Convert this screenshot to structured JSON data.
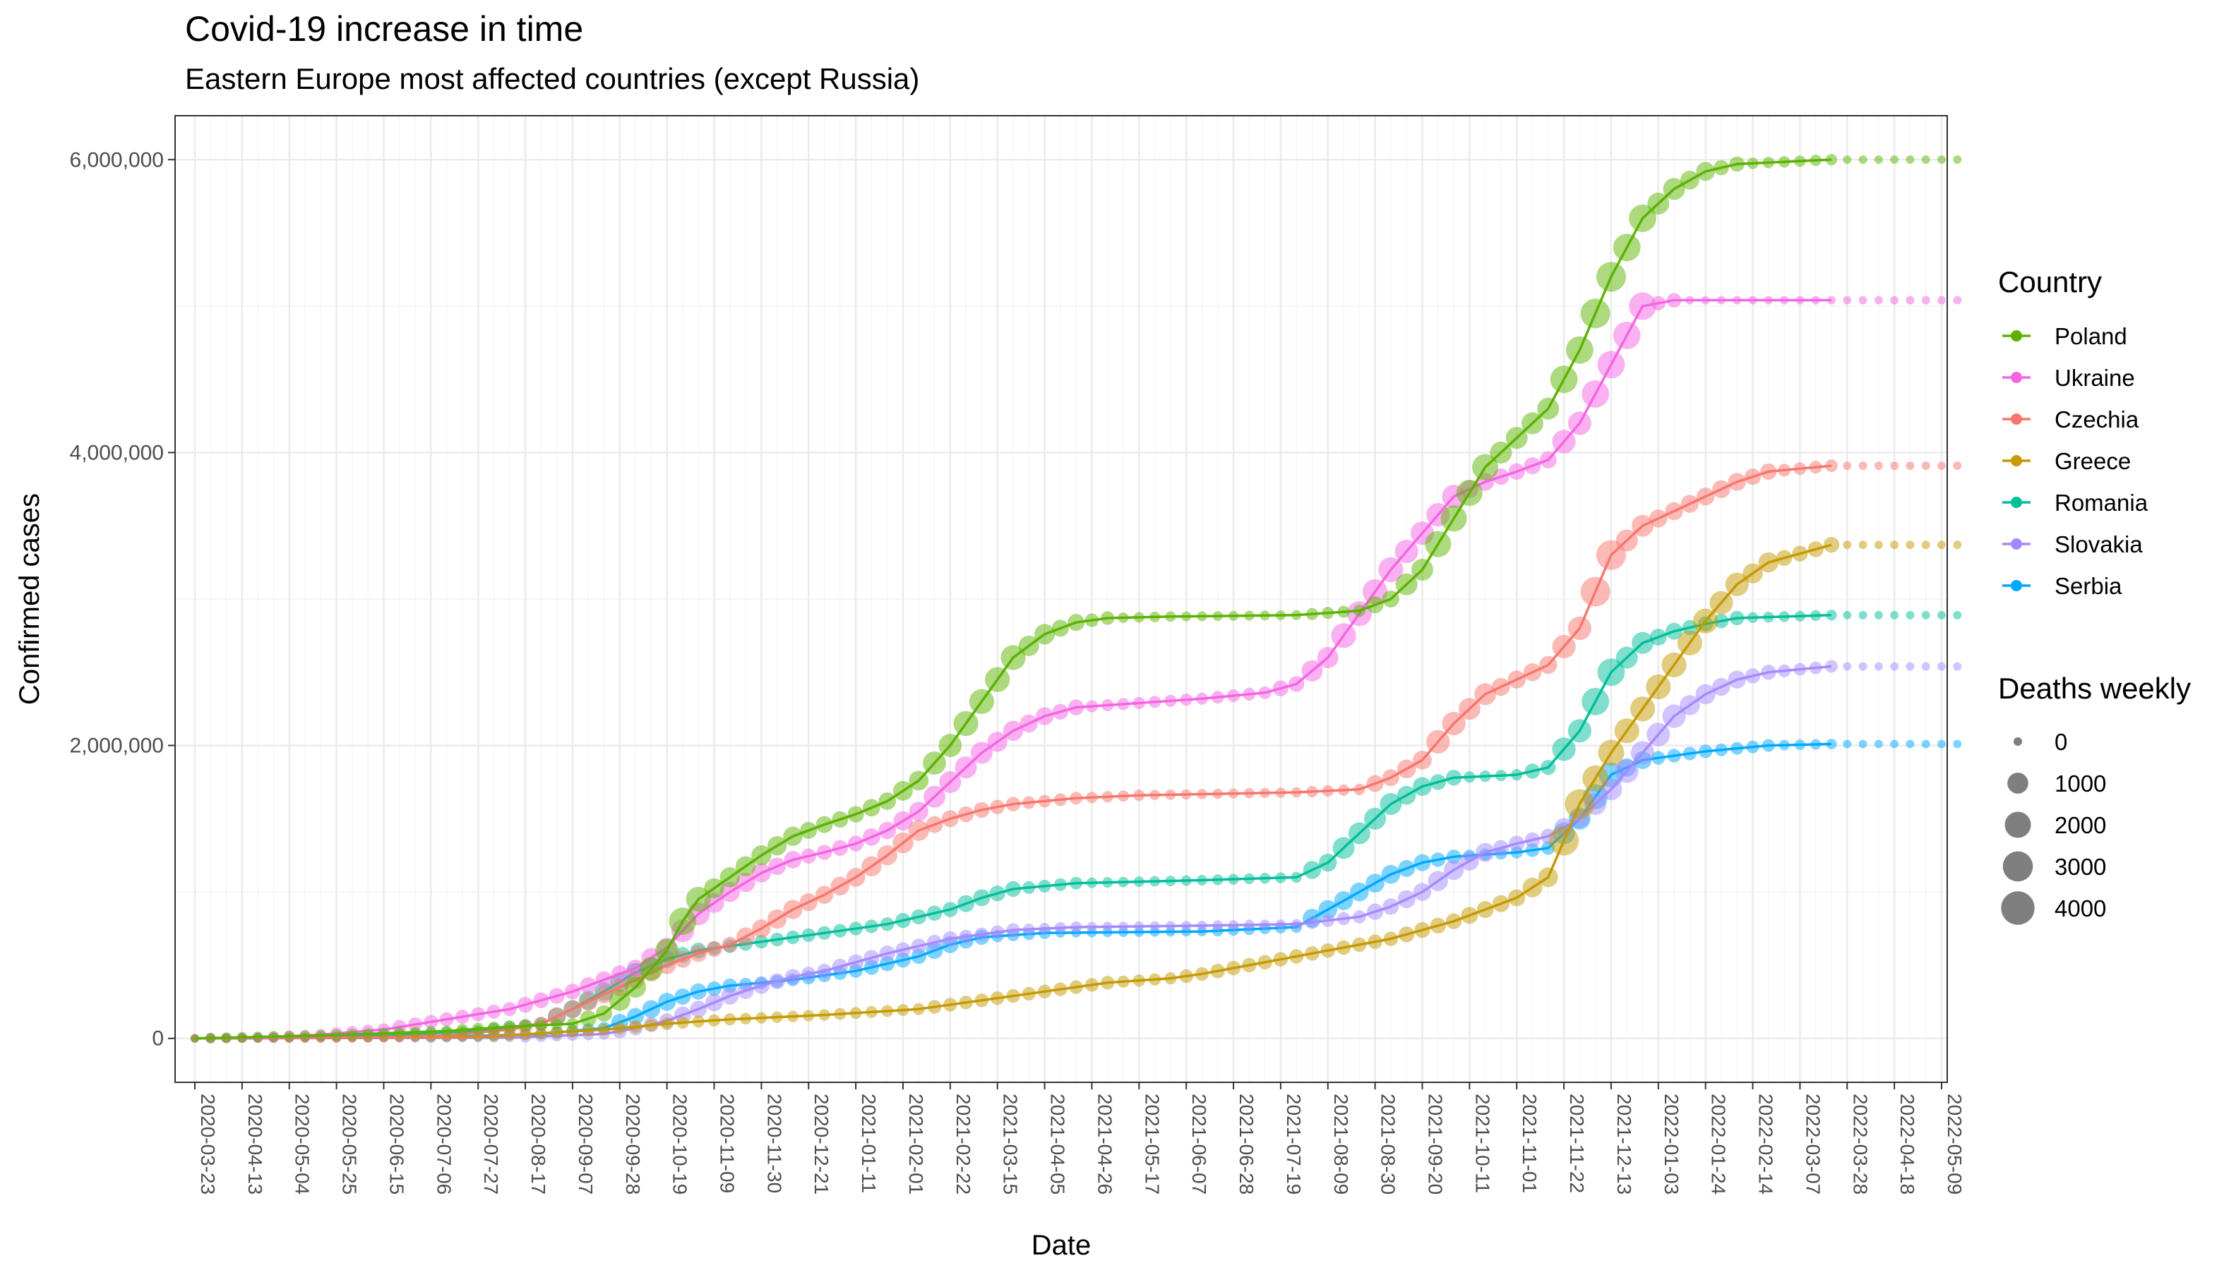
{
  "chart_data": {
    "type": "line",
    "title": "Covid-19 increase in time",
    "subtitle": "Eastern Europe most affected countries (except Russia)",
    "xlabel": "Date",
    "ylabel": "Confirmed cases",
    "x_ticks": [
      "2020-03-23",
      "2020-04-13",
      "2020-05-04",
      "2020-05-25",
      "2020-06-15",
      "2020-07-06",
      "2020-07-27",
      "2020-08-17",
      "2020-09-07",
      "2020-09-28",
      "2020-10-19",
      "2020-11-09",
      "2020-11-30",
      "2020-12-21",
      "2021-01-11",
      "2021-02-01",
      "2021-02-22",
      "2021-03-15",
      "2021-04-05",
      "2021-04-26",
      "2021-05-17",
      "2021-06-07",
      "2021-06-28",
      "2021-07-19",
      "2021-08-09",
      "2021-08-30",
      "2021-09-20",
      "2021-10-11",
      "2021-11-01",
      "2021-11-22",
      "2021-12-13",
      "2022-01-03",
      "2022-01-24",
      "2022-02-14",
      "2022-03-07",
      "2022-03-28",
      "2022-04-18",
      "2022-05-09"
    ],
    "y_ticks": [
      0,
      2000000,
      4000000,
      6000000
    ],
    "y_tick_labels": [
      "0",
      "2,000,000",
      "4,000,000",
      "6,000,000"
    ],
    "ylim": [
      -300000,
      6300000
    ],
    "grid": true,
    "legend_position": "right",
    "legend_title": "Country",
    "size_legend": {
      "title": "Deaths weekly",
      "values": [
        0,
        1000,
        2000,
        3000,
        4000
      ],
      "labels": [
        "0",
        "1000",
        "2000",
        "3000",
        "4000"
      ]
    },
    "series": [
      {
        "name": "Poland",
        "color": "#5BB300",
        "points": [
          [
            0,
            0
          ],
          [
            4,
            10000
          ],
          [
            8,
            20000
          ],
          [
            12,
            35000
          ],
          [
            16,
            50000
          ],
          [
            20,
            80000
          ],
          [
            24,
            100000
          ],
          [
            26,
            170000
          ],
          [
            28,
            350000
          ],
          [
            30,
            600000
          ],
          [
            31,
            800000
          ],
          [
            32,
            950000
          ],
          [
            34,
            1100000
          ],
          [
            36,
            1250000
          ],
          [
            38,
            1380000
          ],
          [
            40,
            1460000
          ],
          [
            42,
            1530000
          ],
          [
            44,
            1620000
          ],
          [
            46,
            1760000
          ],
          [
            48,
            2000000
          ],
          [
            50,
            2300000
          ],
          [
            52,
            2600000
          ],
          [
            54,
            2760000
          ],
          [
            56,
            2840000
          ],
          [
            58,
            2870000
          ],
          [
            62,
            2880000
          ],
          [
            70,
            2890000
          ],
          [
            74,
            2920000
          ],
          [
            76,
            3000000
          ],
          [
            78,
            3200000
          ],
          [
            80,
            3550000
          ],
          [
            82,
            3900000
          ],
          [
            84,
            4100000
          ],
          [
            86,
            4300000
          ],
          [
            88,
            4700000
          ],
          [
            90,
            5200000
          ],
          [
            92,
            5600000
          ],
          [
            94,
            5800000
          ],
          [
            96,
            5920000
          ],
          [
            98,
            5970000
          ],
          [
            104,
            6000000
          ]
        ]
      },
      {
        "name": "Ukraine",
        "color": "#F564E3",
        "points": [
          [
            0,
            0
          ],
          [
            4,
            5000
          ],
          [
            8,
            25000
          ],
          [
            12,
            60000
          ],
          [
            16,
            130000
          ],
          [
            20,
            200000
          ],
          [
            24,
            320000
          ],
          [
            26,
            400000
          ],
          [
            28,
            480000
          ],
          [
            30,
            620000
          ],
          [
            32,
            850000
          ],
          [
            34,
            1000000
          ],
          [
            36,
            1130000
          ],
          [
            38,
            1220000
          ],
          [
            40,
            1270000
          ],
          [
            42,
            1330000
          ],
          [
            44,
            1420000
          ],
          [
            46,
            1550000
          ],
          [
            48,
            1750000
          ],
          [
            50,
            1950000
          ],
          [
            52,
            2100000
          ],
          [
            54,
            2200000
          ],
          [
            56,
            2260000
          ],
          [
            60,
            2290000
          ],
          [
            64,
            2320000
          ],
          [
            68,
            2360000
          ],
          [
            70,
            2420000
          ],
          [
            72,
            2600000
          ],
          [
            74,
            2900000
          ],
          [
            76,
            3200000
          ],
          [
            78,
            3450000
          ],
          [
            80,
            3700000
          ],
          [
            82,
            3800000
          ],
          [
            84,
            3870000
          ],
          [
            86,
            3950000
          ],
          [
            88,
            4200000
          ],
          [
            90,
            4600000
          ],
          [
            92,
            5000000
          ],
          [
            94,
            5040000
          ],
          [
            104,
            5040000
          ]
        ]
      },
      {
        "name": "Czechia",
        "color": "#F8766D",
        "points": [
          [
            0,
            0
          ],
          [
            10,
            5000
          ],
          [
            16,
            20000
          ],
          [
            20,
            60000
          ],
          [
            22,
            100000
          ],
          [
            24,
            200000
          ],
          [
            26,
            300000
          ],
          [
            28,
            400000
          ],
          [
            30,
            500000
          ],
          [
            32,
            580000
          ],
          [
            34,
            640000
          ],
          [
            36,
            750000
          ],
          [
            38,
            880000
          ],
          [
            40,
            980000
          ],
          [
            42,
            1100000
          ],
          [
            44,
            1250000
          ],
          [
            46,
            1420000
          ],
          [
            48,
            1500000
          ],
          [
            50,
            1560000
          ],
          [
            52,
            1600000
          ],
          [
            56,
            1640000
          ],
          [
            60,
            1660000
          ],
          [
            70,
            1680000
          ],
          [
            74,
            1700000
          ],
          [
            76,
            1780000
          ],
          [
            78,
            1900000
          ],
          [
            80,
            2150000
          ],
          [
            82,
            2350000
          ],
          [
            84,
            2450000
          ],
          [
            86,
            2550000
          ],
          [
            88,
            2800000
          ],
          [
            90,
            3300000
          ],
          [
            92,
            3500000
          ],
          [
            94,
            3600000
          ],
          [
            96,
            3700000
          ],
          [
            98,
            3800000
          ],
          [
            100,
            3870000
          ],
          [
            104,
            3910000
          ]
        ]
      },
      {
        "name": "Greece",
        "color": "#C49A00",
        "points": [
          [
            0,
            0
          ],
          [
            18,
            10000
          ],
          [
            26,
            60000
          ],
          [
            30,
            100000
          ],
          [
            34,
            130000
          ],
          [
            40,
            160000
          ],
          [
            46,
            200000
          ],
          [
            50,
            260000
          ],
          [
            54,
            320000
          ],
          [
            58,
            380000
          ],
          [
            62,
            410000
          ],
          [
            64,
            440000
          ],
          [
            68,
            520000
          ],
          [
            72,
            600000
          ],
          [
            76,
            680000
          ],
          [
            80,
            800000
          ],
          [
            84,
            960000
          ],
          [
            86,
            1100000
          ],
          [
            88,
            1600000
          ],
          [
            90,
            1950000
          ],
          [
            92,
            2250000
          ],
          [
            94,
            2550000
          ],
          [
            96,
            2850000
          ],
          [
            98,
            3100000
          ],
          [
            100,
            3250000
          ],
          [
            104,
            3370000
          ]
        ]
      },
      {
        "name": "Romania",
        "color": "#00BF9A",
        "points": [
          [
            0,
            0
          ],
          [
            10,
            10000
          ],
          [
            18,
            50000
          ],
          [
            22,
            100000
          ],
          [
            24,
            200000
          ],
          [
            26,
            320000
          ],
          [
            28,
            450000
          ],
          [
            30,
            540000
          ],
          [
            32,
            600000
          ],
          [
            36,
            660000
          ],
          [
            40,
            720000
          ],
          [
            44,
            780000
          ],
          [
            48,
            880000
          ],
          [
            50,
            960000
          ],
          [
            52,
            1020000
          ],
          [
            56,
            1060000
          ],
          [
            64,
            1080000
          ],
          [
            70,
            1100000
          ],
          [
            72,
            1200000
          ],
          [
            74,
            1400000
          ],
          [
            76,
            1600000
          ],
          [
            78,
            1720000
          ],
          [
            80,
            1780000
          ],
          [
            84,
            1800000
          ],
          [
            86,
            1850000
          ],
          [
            88,
            2100000
          ],
          [
            90,
            2500000
          ],
          [
            92,
            2700000
          ],
          [
            94,
            2780000
          ],
          [
            96,
            2830000
          ],
          [
            98,
            2870000
          ],
          [
            104,
            2890000
          ]
        ]
      },
      {
        "name": "Slovakia",
        "color": "#A58AFF",
        "points": [
          [
            0,
            0
          ],
          [
            20,
            5000
          ],
          [
            26,
            30000
          ],
          [
            28,
            70000
          ],
          [
            30,
            120000
          ],
          [
            32,
            200000
          ],
          [
            34,
            290000
          ],
          [
            36,
            360000
          ],
          [
            38,
            420000
          ],
          [
            40,
            460000
          ],
          [
            44,
            580000
          ],
          [
            48,
            680000
          ],
          [
            52,
            740000
          ],
          [
            56,
            760000
          ],
          [
            64,
            770000
          ],
          [
            70,
            780000
          ],
          [
            74,
            830000
          ],
          [
            76,
            900000
          ],
          [
            78,
            1000000
          ],
          [
            80,
            1150000
          ],
          [
            82,
            1270000
          ],
          [
            84,
            1330000
          ],
          [
            86,
            1380000
          ],
          [
            88,
            1500000
          ],
          [
            90,
            1700000
          ],
          [
            92,
            1950000
          ],
          [
            94,
            2200000
          ],
          [
            96,
            2350000
          ],
          [
            98,
            2450000
          ],
          [
            100,
            2500000
          ],
          [
            104,
            2540000
          ]
        ]
      },
      {
        "name": "Serbia",
        "color": "#00A9FF",
        "points": [
          [
            0,
            0
          ],
          [
            14,
            5000
          ],
          [
            22,
            30000
          ],
          [
            26,
            70000
          ],
          [
            28,
            150000
          ],
          [
            30,
            250000
          ],
          [
            32,
            320000
          ],
          [
            34,
            360000
          ],
          [
            38,
            400000
          ],
          [
            42,
            460000
          ],
          [
            46,
            560000
          ],
          [
            48,
            640000
          ],
          [
            50,
            690000
          ],
          [
            54,
            720000
          ],
          [
            64,
            730000
          ],
          [
            70,
            760000
          ],
          [
            72,
            880000
          ],
          [
            74,
            1000000
          ],
          [
            76,
            1120000
          ],
          [
            78,
            1200000
          ],
          [
            80,
            1240000
          ],
          [
            84,
            1270000
          ],
          [
            86,
            1300000
          ],
          [
            88,
            1500000
          ],
          [
            90,
            1800000
          ],
          [
            92,
            1900000
          ],
          [
            96,
            1960000
          ],
          [
            100,
            2000000
          ],
          [
            104,
            2010000
          ]
        ]
      }
    ]
  }
}
